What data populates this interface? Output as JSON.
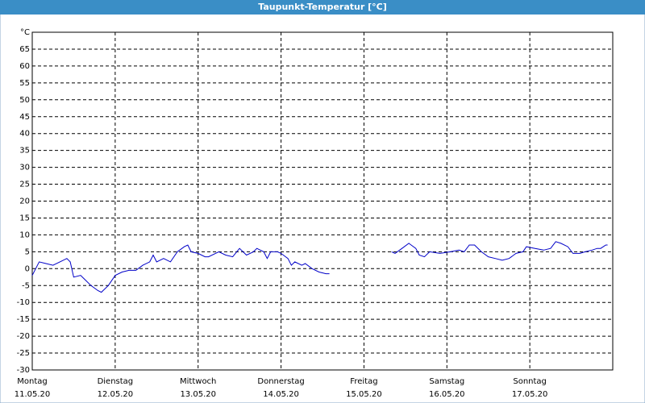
{
  "chart_data": {
    "type": "line",
    "title": "Taupunkt-Temperatur [°C]",
    "xlim": [
      0,
      168
    ],
    "xticks": [
      {
        "value": 0,
        "label": "Montag",
        "sublabel": "11.05.20"
      },
      {
        "value": 24,
        "label": "Dienstag",
        "sublabel": "12.05.20"
      },
      {
        "value": 48,
        "label": "Mittwoch",
        "sublabel": "13.05.20"
      },
      {
        "value": 72,
        "label": "Donnerstag",
        "sublabel": "14.05.20"
      },
      {
        "value": 96,
        "label": "Freitag",
        "sublabel": "15.05.20"
      },
      {
        "value": 120,
        "label": "Samstag",
        "sublabel": "16.05.20"
      },
      {
        "value": 144,
        "label": "Sonntag",
        "sublabel": "17.05.20"
      }
    ],
    "ylim": [
      -30,
      70
    ],
    "yticks": [
      -30,
      -25,
      -20,
      -15,
      -10,
      -5,
      0,
      5,
      10,
      15,
      20,
      25,
      30,
      35,
      40,
      45,
      50,
      55,
      60,
      65,
      {
        "value": 70,
        "label": "°C"
      }
    ],
    "grid": true,
    "series": [
      {
        "color": "#0000c8",
        "x": [
          0,
          2,
          4,
          6,
          8,
          10,
          11,
          12,
          14,
          15,
          17,
          19,
          20,
          22,
          24,
          26,
          28,
          30,
          32,
          34,
          35,
          36,
          38,
          40,
          42,
          44,
          45,
          46,
          48,
          50,
          51,
          54,
          56,
          58,
          60,
          62,
          64,
          65,
          67,
          68,
          69,
          71,
          72,
          74,
          75,
          76,
          78,
          79,
          81,
          83,
          85,
          86,
          95,
          104,
          105,
          107,
          109,
          111,
          112,
          113.5,
          115,
          118,
          121,
          123.5,
          125,
          126.5,
          128,
          130,
          132,
          134,
          136,
          138,
          140,
          142,
          143,
          145.5,
          148,
          150,
          151.5,
          153,
          155,
          156.5,
          158.5,
          160,
          162,
          163.5,
          164.5,
          166,
          166.5
        ],
        "values": [
          -2,
          2,
          1.5,
          1,
          2,
          3,
          2,
          -2.5,
          -2,
          -3,
          -5,
          -6.5,
          -7,
          -5,
          -2,
          -1,
          -0.5,
          -0.5,
          1,
          2,
          4,
          2,
          3,
          2,
          5,
          6.5,
          7,
          5,
          4.5,
          3.5,
          3.5,
          5,
          4,
          3.5,
          6,
          4,
          5,
          6,
          5,
          3,
          5,
          5,
          4.5,
          3,
          1,
          2,
          1,
          1.5,
          0,
          -1,
          -1.5,
          -1.5,
          null,
          5,
          4.5,
          6,
          7.5,
          6,
          4,
          3.5,
          5,
          4.5,
          5,
          5.5,
          5,
          7,
          7,
          5,
          3.5,
          3,
          2.5,
          3,
          4.5,
          5,
          6.5,
          6,
          5.5,
          6,
          8,
          7.5,
          6.5,
          4.5,
          4.5,
          5,
          5.5,
          6,
          6,
          7,
          7
        ]
      }
    ]
  }
}
